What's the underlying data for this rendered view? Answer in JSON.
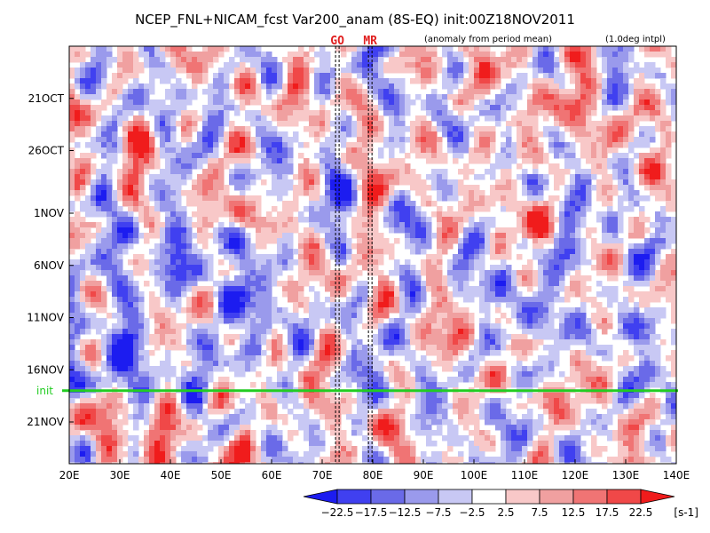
{
  "header": {
    "title": "NCEP_FNL+NICAM_fcst Var200_anam (8S-EQ) init:00Z18NOV2011",
    "subtitle_left": "(anomaly from period mean)",
    "subtitle_right": "(1.0deg intpl)"
  },
  "chart_data": {
    "type": "heatmap",
    "title": "NCEP_FNL+NICAM_fcst Var200_anam (8S-EQ) init:00Z18NOV2011",
    "xlabel": "",
    "ylabel": "",
    "xlim": [
      20,
      140
    ],
    "ylim_days_from_16OCT2011": [
      0,
      40
    ],
    "x_ticks": [
      {
        "value": 20,
        "label": "20E"
      },
      {
        "value": 30,
        "label": "30E"
      },
      {
        "value": 40,
        "label": "40E"
      },
      {
        "value": 50,
        "label": "50E"
      },
      {
        "value": 60,
        "label": "60E"
      },
      {
        "value": 70,
        "label": "70E"
      },
      {
        "value": 80,
        "label": "80E"
      },
      {
        "value": 90,
        "label": "90E"
      },
      {
        "value": 100,
        "label": "100E"
      },
      {
        "value": 110,
        "label": "110E"
      },
      {
        "value": 120,
        "label": "120E"
      },
      {
        "value": 130,
        "label": "130E"
      },
      {
        "value": 140,
        "label": "140E"
      }
    ],
    "y_ticks": [
      {
        "date": "2011-10-21",
        "label": "21OCT"
      },
      {
        "date": "2011-10-26",
        "label": "26OCT"
      },
      {
        "date": "2011-11-01",
        "label": "1NOV"
      },
      {
        "date": "2011-11-06",
        "label": "6NOV"
      },
      {
        "date": "2011-11-11",
        "label": "11NOV"
      },
      {
        "date": "2011-11-16",
        "label": "16NOV"
      },
      {
        "date": "2011-11-21",
        "label": "21NOV"
      }
    ],
    "init_line": {
      "date": "2011-11-18",
      "label": "init",
      "color": "#22cc22"
    },
    "markers": [
      {
        "label": "GO",
        "longitude": 73
      },
      {
        "label": "MR",
        "longitude": 79.5
      }
    ],
    "colorbar": {
      "unit": "[s-1]",
      "levels": [
        -22.5,
        -17.5,
        -12.5,
        -7.5,
        -2.5,
        2.5,
        7.5,
        12.5,
        17.5,
        22.5
      ],
      "level_labels": [
        "−22.5",
        "−17.5",
        "−12.5",
        "−7.5",
        "−2.5",
        "2.5",
        "7.5",
        "12.5",
        "17.5",
        "22.5"
      ],
      "colors": [
        "#1c1cf0",
        "#4040f0",
        "#6a6ae8",
        "#9a9aec",
        "#c8c8f4",
        "#ffffff",
        "#f8c8c8",
        "#f0a0a0",
        "#f07474",
        "#f04848",
        "#f01c1c"
      ]
    }
  }
}
